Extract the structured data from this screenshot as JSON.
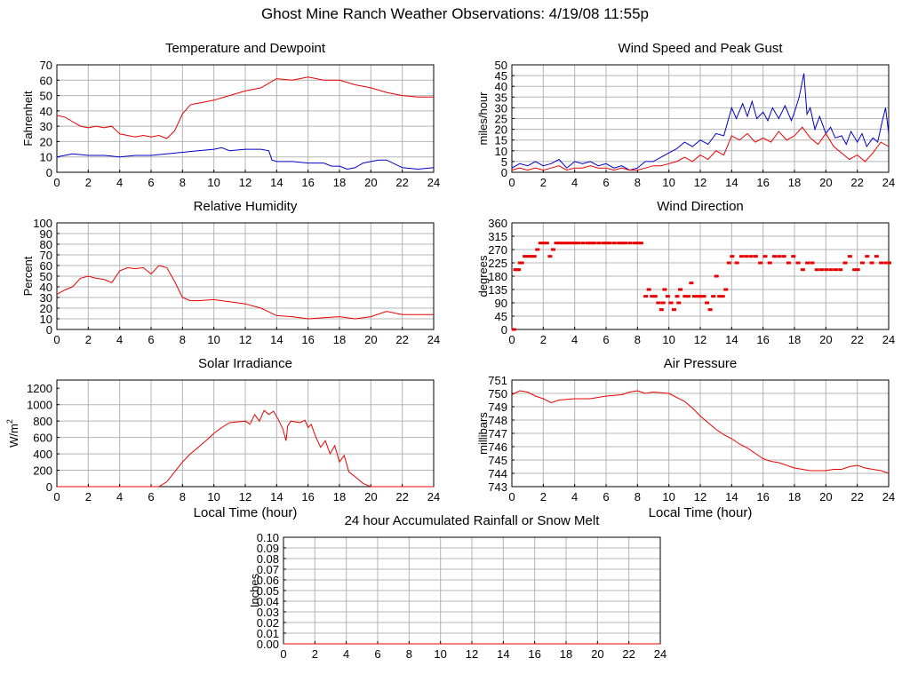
{
  "page_title": "Ghost Mine Ranch Weather Observations: 4/19/08 11:55p",
  "colors": {
    "red": "#e80000",
    "blue": "#0000c8",
    "grid": "#b4b4b4"
  },
  "chart_data": [
    {
      "id": "temp",
      "type": "line",
      "title": "Temperature and Dewpoint",
      "ylabel": "Fahrenheit",
      "xlabel": "",
      "xlim": [
        0,
        24
      ],
      "ylim": [
        0,
        70
      ],
      "xticks": [
        0,
        2,
        4,
        6,
        8,
        10,
        12,
        14,
        16,
        18,
        20,
        22,
        24
      ],
      "yticks": [
        0,
        10,
        20,
        30,
        40,
        50,
        60,
        70
      ],
      "grid": true,
      "series": [
        {
          "color": "red",
          "mode": "line",
          "x": [
            0,
            0.5,
            1,
            1.5,
            2,
            2.5,
            3,
            3.5,
            4,
            4.5,
            5,
            5.5,
            6,
            6.5,
            7,
            7.5,
            8,
            8.5,
            9,
            9.5,
            10,
            11,
            12,
            13,
            13.5,
            14,
            15,
            16,
            17,
            18,
            19,
            20,
            21,
            22,
            23,
            24
          ],
          "y": [
            37,
            36,
            33,
            30,
            29,
            30,
            29,
            30,
            25,
            24,
            23,
            24,
            23,
            24,
            22,
            27,
            38,
            44,
            45,
            46,
            47,
            50,
            53,
            55,
            58,
            61,
            60,
            62,
            60,
            60,
            57,
            55,
            52,
            50,
            49,
            49
          ]
        },
        {
          "color": "blue",
          "mode": "line",
          "x": [
            0,
            0.5,
            1,
            2,
            3,
            4,
            5,
            6,
            7,
            8,
            9,
            10,
            10.5,
            11,
            12,
            13,
            13.5,
            13.7,
            14,
            15,
            16,
            17,
            17.5,
            18,
            18.5,
            19,
            19.5,
            20,
            20.5,
            21,
            22,
            23,
            24
          ],
          "y": [
            10,
            11,
            12,
            11,
            11,
            10,
            11,
            11,
            12,
            13,
            14,
            15,
            16,
            14,
            15,
            15,
            14,
            8,
            7,
            7,
            6,
            6,
            4,
            4,
            2,
            3,
            6,
            7,
            8,
            8,
            3,
            2,
            3
          ]
        }
      ]
    },
    {
      "id": "wind",
      "type": "line",
      "title": "Wind Speed and Peak Gust",
      "ylabel": "miles/hour",
      "xlabel": "",
      "xlim": [
        0,
        24
      ],
      "ylim": [
        0,
        50
      ],
      "xticks": [
        0,
        2,
        4,
        6,
        8,
        10,
        12,
        14,
        16,
        18,
        20,
        22,
        24
      ],
      "yticks": [
        0,
        5,
        10,
        15,
        20,
        25,
        30,
        35,
        40,
        45,
        50
      ],
      "grid": true,
      "series": [
        {
          "color": "blue",
          "mode": "line",
          "x": [
            0,
            0.5,
            1,
            1.5,
            2,
            2.5,
            3,
            3.5,
            4,
            4.5,
            5,
            5.5,
            6,
            6.5,
            7,
            7.5,
            8,
            8.5,
            9,
            9.5,
            10,
            10.5,
            11,
            11.5,
            12,
            12.5,
            13,
            13.5,
            14,
            14.3,
            14.7,
            15,
            15.3,
            15.6,
            16,
            16.3,
            16.6,
            17,
            17.4,
            17.8,
            18,
            18.3,
            18.6,
            18.8,
            19,
            19.3,
            19.6,
            20,
            20.3,
            20.6,
            21,
            21.3,
            21.6,
            22,
            22.3,
            22.6,
            23,
            23.3,
            23.6,
            23.8,
            24
          ],
          "y": [
            2,
            4,
            3,
            5,
            3,
            4,
            6,
            2,
            5,
            4,
            5,
            3,
            4,
            2,
            3,
            1,
            2,
            5,
            5,
            7,
            9,
            11,
            14,
            12,
            15,
            13,
            18,
            17,
            30,
            25,
            32,
            26,
            33,
            25,
            28,
            24,
            30,
            25,
            31,
            24,
            28,
            35,
            46,
            27,
            30,
            20,
            26,
            18,
            21,
            16,
            17,
            13,
            19,
            14,
            18,
            12,
            16,
            14,
            24,
            30,
            18
          ]
        },
        {
          "color": "red",
          "mode": "line",
          "x": [
            0,
            0.5,
            1,
            1.5,
            2,
            2.5,
            3,
            3.5,
            4,
            4.5,
            5,
            5.5,
            6,
            6.5,
            7,
            7.5,
            8,
            8.5,
            9,
            9.5,
            10,
            10.5,
            11,
            11.5,
            12,
            12.5,
            13,
            13.5,
            14,
            14.5,
            15,
            15.5,
            16,
            16.5,
            17,
            17.5,
            18,
            18.5,
            19,
            19.5,
            20,
            20.5,
            21,
            21.5,
            22,
            22.5,
            23,
            23.5,
            24
          ],
          "y": [
            1,
            2,
            1,
            2,
            1,
            2,
            3,
            1,
            2,
            2,
            3,
            2,
            2,
            1,
            2,
            1,
            1,
            2,
            3,
            3,
            4,
            5,
            7,
            5,
            8,
            6,
            10,
            8,
            17,
            15,
            18,
            14,
            16,
            14,
            19,
            15,
            17,
            21,
            16,
            13,
            18,
            12,
            9,
            6,
            8,
            5,
            9,
            14,
            12
          ]
        }
      ]
    },
    {
      "id": "rh",
      "type": "line",
      "title": "Relative Humidity",
      "ylabel": "Percent",
      "xlabel": "",
      "xlim": [
        0,
        24
      ],
      "ylim": [
        0,
        100
      ],
      "xticks": [
        0,
        2,
        4,
        6,
        8,
        10,
        12,
        14,
        16,
        18,
        20,
        22,
        24
      ],
      "yticks": [
        0,
        10,
        20,
        30,
        40,
        50,
        60,
        70,
        80,
        90,
        100
      ],
      "grid": true,
      "series": [
        {
          "color": "red",
          "mode": "line",
          "x": [
            0,
            0.5,
            1,
            1.5,
            2,
            2.5,
            3,
            3.5,
            4,
            4.5,
            5,
            5.5,
            6,
            6.5,
            7,
            7.5,
            8,
            8.5,
            9,
            10,
            11,
            12,
            13,
            14,
            15,
            16,
            17,
            18,
            19,
            20,
            21,
            22,
            23,
            24
          ],
          "y": [
            33,
            37,
            40,
            48,
            50,
            48,
            47,
            44,
            55,
            58,
            57,
            58,
            52,
            60,
            58,
            45,
            30,
            27,
            27,
            28,
            26,
            24,
            20,
            13,
            12,
            10,
            11,
            12,
            10,
            12,
            17,
            14,
            14,
            14
          ]
        }
      ]
    },
    {
      "id": "wdir",
      "type": "scatter",
      "title": "Wind Direction",
      "ylabel": "degrees",
      "xlabel": "",
      "xlim": [
        0,
        24
      ],
      "ylim": [
        0,
        360
      ],
      "xticks": [
        0,
        2,
        4,
        6,
        8,
        10,
        12,
        14,
        16,
        18,
        20,
        22,
        24
      ],
      "yticks": [
        0,
        45,
        90,
        135,
        180,
        225,
        270,
        315,
        360
      ],
      "grid": true,
      "series": [
        {
          "color": "red",
          "mode": "points",
          "x": [
            0.1,
            0.2,
            0.3,
            0.4,
            0.5,
            0.6,
            0.8,
            1,
            1.2,
            1.4,
            1.6,
            1.8,
            2,
            2.2,
            2.4,
            2.6,
            2.8,
            3,
            3.2,
            3.4,
            3.6,
            3.8,
            4,
            4.2,
            4.5,
            4.8,
            5,
            5.2,
            5.5,
            5.8,
            6,
            6.2,
            6.5,
            6.8,
            7,
            7.2,
            7.5,
            7.8,
            8,
            8.2,
            8.5,
            8.7,
            8.9,
            9.1,
            9.3,
            9.5,
            9.6,
            9.7,
            9.9,
            10.1,
            10.3,
            10.5,
            10.6,
            10.7,
            11,
            11.2,
            11.4,
            11.6,
            11.8,
            12,
            12.2,
            12.4,
            12.6,
            12.8,
            13,
            13.2,
            13.4,
            13.6,
            13.8,
            14,
            14.3,
            14.6,
            14.9,
            15.2,
            15.5,
            15.8,
            16.1,
            16.4,
            16.7,
            17,
            17.3,
            17.6,
            17.9,
            18.2,
            18.5,
            18.8,
            19.1,
            19.4,
            19.7,
            20,
            20.3,
            20.6,
            20.9,
            21.2,
            21.5,
            21.8,
            22,
            22.3,
            22.6,
            22.9,
            23.2,
            23.5,
            23.8,
            24
          ],
          "y": [
            0,
            202,
            202,
            202,
            225,
            225,
            247,
            247,
            247,
            247,
            270,
            292,
            292,
            292,
            247,
            270,
            292,
            292,
            292,
            292,
            292,
            292,
            292,
            292,
            292,
            292,
            292,
            292,
            292,
            292,
            292,
            292,
            292,
            292,
            292,
            292,
            292,
            292,
            292,
            292,
            112,
            135,
            112,
            112,
            90,
            67,
            90,
            135,
            112,
            90,
            67,
            112,
            90,
            135,
            112,
            112,
            157,
            112,
            112,
            112,
            112,
            90,
            67,
            112,
            180,
            112,
            112,
            135,
            225,
            247,
            225,
            247,
            247,
            247,
            247,
            225,
            247,
            225,
            247,
            247,
            247,
            225,
            247,
            225,
            202,
            225,
            225,
            202,
            202,
            202,
            202,
            202,
            202,
            225,
            247,
            202,
            202,
            225,
            247,
            225,
            247,
            225,
            225,
            225
          ]
        }
      ]
    },
    {
      "id": "solar",
      "type": "line",
      "title": "Solar Irradiance",
      "ylabel": "W/m",
      "ylabel_sup": "2",
      "xlabel": "Local Time (hour)",
      "xlim": [
        0,
        24
      ],
      "ylim": [
        0,
        1300
      ],
      "xticks": [
        0,
        2,
        4,
        6,
        8,
        10,
        12,
        14,
        16,
        18,
        20,
        22,
        24
      ],
      "yticks": [
        0,
        200,
        400,
        600,
        800,
        1000,
        1200
      ],
      "grid": true,
      "series": [
        {
          "color": "red",
          "mode": "line",
          "x": [
            0,
            6.5,
            7,
            7.5,
            8,
            8.5,
            9,
            9.5,
            10,
            10.5,
            11,
            11.5,
            12,
            12.3,
            12.6,
            12.9,
            13.2,
            13.5,
            13.8,
            14.1,
            14.4,
            14.6,
            14.7,
            14.9,
            15.2,
            15.5,
            15.8,
            16,
            16.2,
            16.5,
            16.8,
            17.1,
            17.4,
            17.7,
            18,
            18.3,
            18.6,
            19,
            19.5,
            20,
            24
          ],
          "y": [
            0,
            0,
            60,
            180,
            300,
            400,
            480,
            560,
            650,
            720,
            780,
            790,
            800,
            760,
            880,
            800,
            930,
            880,
            920,
            820,
            700,
            560,
            740,
            800,
            790,
            780,
            810,
            720,
            760,
            600,
            480,
            560,
            400,
            500,
            300,
            380,
            180,
            120,
            40,
            0,
            0
          ]
        }
      ]
    },
    {
      "id": "pressure",
      "type": "line",
      "title": "Air Pressure",
      "ylabel": "millibars",
      "xlabel": "Local Time (hour)",
      "xlim": [
        0,
        24
      ],
      "ylim": [
        743,
        751
      ],
      "xticks": [
        0,
        2,
        4,
        6,
        8,
        10,
        12,
        14,
        16,
        18,
        20,
        22,
        24
      ],
      "yticks": [
        743,
        744,
        745,
        746,
        747,
        748,
        749,
        750,
        751
      ],
      "grid": true,
      "series": [
        {
          "color": "red",
          "mode": "line",
          "x": [
            0,
            0.5,
            1,
            1.5,
            2,
            2.5,
            3,
            4,
            5,
            6,
            7,
            7.5,
            8,
            8.5,
            9,
            10,
            10.5,
            11,
            11.5,
            12,
            12.5,
            13,
            13.5,
            14,
            14.5,
            15,
            15.5,
            16,
            16.5,
            17,
            17.5,
            18,
            18.5,
            19,
            19.5,
            20,
            20.5,
            21,
            21.5,
            22,
            22.5,
            23,
            23.5,
            24
          ],
          "y": [
            749.9,
            750.2,
            750.1,
            749.8,
            749.6,
            749.3,
            749.5,
            749.6,
            749.6,
            749.8,
            749.9,
            750.1,
            750.2,
            750.0,
            750.1,
            750.0,
            749.7,
            749.4,
            748.9,
            748.3,
            747.8,
            747.3,
            746.9,
            746.6,
            746.2,
            745.9,
            745.5,
            745.1,
            744.9,
            744.8,
            744.6,
            744.4,
            744.3,
            744.2,
            744.2,
            744.2,
            744.3,
            744.3,
            744.5,
            744.6,
            744.4,
            744.3,
            744.2,
            744.0
          ]
        }
      ]
    },
    {
      "id": "rain",
      "type": "line",
      "title": "24 hour Accumulated Rainfall or Snow Melt",
      "ylabel": "Inches",
      "xlabel": "",
      "xlim": [
        0,
        24
      ],
      "ylim": [
        0,
        0.1
      ],
      "xticks": [
        0,
        2,
        4,
        6,
        8,
        10,
        12,
        14,
        16,
        18,
        20,
        22,
        24
      ],
      "yticks": [
        "0.00",
        "0.01",
        "0.02",
        "0.03",
        "0.04",
        "0.05",
        "0.06",
        "0.07",
        "0.08",
        "0.09",
        "0.10"
      ],
      "grid": true,
      "series": [
        {
          "color": "red",
          "mode": "line",
          "x": [
            0,
            24
          ],
          "y": [
            0,
            0
          ]
        }
      ]
    }
  ]
}
